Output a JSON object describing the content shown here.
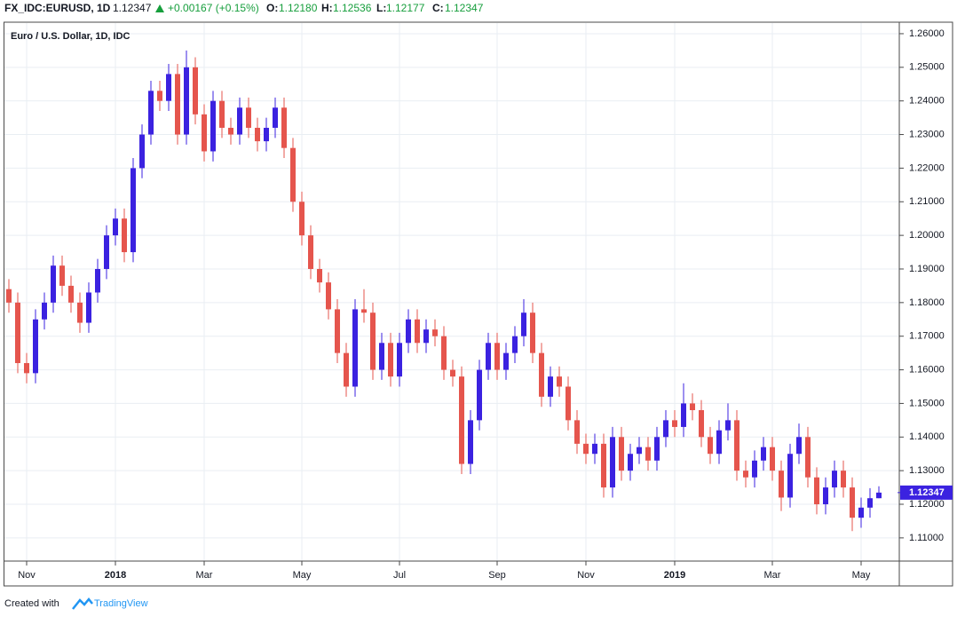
{
  "header": {
    "symbol": "FX_IDC:EURUSD, 1D",
    "last": "1.12347",
    "change": "+0.00167 (+0.15%)",
    "ohlc_labels": [
      "O:",
      "H:",
      "L:",
      "C:"
    ],
    "ohlc_values": [
      "1.12180",
      "1.12536",
      "1.12177",
      "1.12347"
    ]
  },
  "chart_data": {
    "type": "candlestick",
    "title": "Euro / U.S. Dollar, 1D, IDC",
    "up_color": "#3b22e0",
    "down_color": "#e5554d",
    "grid": true,
    "last_price_label": "1.12347",
    "categories": [
      null,
      null,
      "Nov",
      null,
      null,
      null,
      null,
      null,
      null,
      null,
      null,
      null,
      "2018",
      null,
      null,
      null,
      null,
      null,
      null,
      null,
      null,
      null,
      "Mar",
      null,
      null,
      null,
      null,
      null,
      null,
      null,
      null,
      null,
      null,
      "May",
      null,
      null,
      null,
      null,
      null,
      null,
      null,
      null,
      null,
      null,
      "Jul",
      null,
      null,
      null,
      null,
      null,
      null,
      null,
      null,
      null,
      null,
      "Sep",
      null,
      null,
      null,
      null,
      null,
      null,
      null,
      null,
      null,
      "Nov",
      null,
      null,
      null,
      null,
      null,
      null,
      null,
      null,
      null,
      "2019",
      null,
      null,
      null,
      null,
      null,
      null,
      null,
      null,
      null,
      null,
      "Mar",
      null,
      null,
      null,
      null,
      null,
      null,
      null,
      null,
      null,
      "May",
      null,
      null
    ],
    "open": [
      1.184,
      1.18,
      1.162,
      1.159,
      1.175,
      1.18,
      1.191,
      1.185,
      1.18,
      1.174,
      1.183,
      1.19,
      1.2,
      1.205,
      1.195,
      1.22,
      1.23,
      1.243,
      1.24,
      1.248,
      1.23,
      1.25,
      1.236,
      1.225,
      1.24,
      1.232,
      1.23,
      1.238,
      1.232,
      1.228,
      1.232,
      1.238,
      1.226,
      1.21,
      1.2,
      1.19,
      1.186,
      1.178,
      1.165,
      1.155,
      1.178,
      1.177,
      1.16,
      1.168,
      1.158,
      1.168,
      1.175,
      1.168,
      1.172,
      1.17,
      1.16,
      1.158,
      1.132,
      1.145,
      1.16,
      1.168,
      1.16,
      1.165,
      1.17,
      1.177,
      1.165,
      1.152,
      1.158,
      1.155,
      1.145,
      1.138,
      1.135,
      1.138,
      1.125,
      1.14,
      1.13,
      1.135,
      1.137,
      1.133,
      1.14,
      1.145,
      1.143,
      1.15,
      1.148,
      1.14,
      1.135,
      1.142,
      1.145,
      1.13,
      1.128,
      1.133,
      1.137,
      1.13,
      1.122,
      1.135,
      1.14,
      1.128,
      1.12,
      1.125,
      1.13,
      1.125,
      1.116,
      1.119,
      1.1218
    ],
    "high": [
      1.187,
      1.183,
      1.165,
      1.178,
      1.183,
      1.194,
      1.194,
      1.188,
      1.183,
      1.186,
      1.193,
      1.203,
      1.208,
      1.208,
      1.223,
      1.233,
      1.246,
      1.246,
      1.251,
      1.251,
      1.255,
      1.253,
      1.239,
      1.243,
      1.243,
      1.235,
      1.241,
      1.241,
      1.235,
      1.235,
      1.241,
      1.241,
      1.229,
      1.213,
      1.203,
      1.193,
      1.189,
      1.181,
      1.168,
      1.181,
      1.184,
      1.18,
      1.171,
      1.171,
      1.171,
      1.178,
      1.178,
      1.175,
      1.175,
      1.173,
      1.163,
      1.161,
      1.148,
      1.163,
      1.171,
      1.171,
      1.168,
      1.173,
      1.181,
      1.18,
      1.168,
      1.161,
      1.161,
      1.158,
      1.148,
      1.141,
      1.141,
      1.141,
      1.143,
      1.143,
      1.138,
      1.14,
      1.14,
      1.143,
      1.148,
      1.148,
      1.156,
      1.153,
      1.151,
      1.143,
      1.145,
      1.15,
      1.148,
      1.133,
      1.136,
      1.14,
      1.14,
      1.133,
      1.138,
      1.144,
      1.143,
      1.131,
      1.128,
      1.133,
      1.133,
      1.128,
      1.122,
      1.1248,
      1.12536
    ],
    "low": [
      1.177,
      1.159,
      1.156,
      1.156,
      1.172,
      1.177,
      1.182,
      1.177,
      1.171,
      1.171,
      1.18,
      1.187,
      1.197,
      1.192,
      1.192,
      1.217,
      1.227,
      1.237,
      1.237,
      1.227,
      1.227,
      1.233,
      1.222,
      1.222,
      1.229,
      1.227,
      1.227,
      1.229,
      1.225,
      1.225,
      1.229,
      1.223,
      1.207,
      1.197,
      1.187,
      1.183,
      1.175,
      1.162,
      1.152,
      1.152,
      1.174,
      1.157,
      1.157,
      1.155,
      1.155,
      1.165,
      1.165,
      1.165,
      1.167,
      1.157,
      1.155,
      1.129,
      1.129,
      1.142,
      1.157,
      1.157,
      1.157,
      1.162,
      1.167,
      1.162,
      1.149,
      1.149,
      1.152,
      1.142,
      1.135,
      1.132,
      1.132,
      1.122,
      1.122,
      1.127,
      1.127,
      1.132,
      1.13,
      1.13,
      1.137,
      1.14,
      1.14,
      1.145,
      1.137,
      1.132,
      1.132,
      1.139,
      1.127,
      1.125,
      1.125,
      1.13,
      1.127,
      1.118,
      1.119,
      1.132,
      1.125,
      1.117,
      1.117,
      1.122,
      1.122,
      1.112,
      1.113,
      1.116,
      1.12177
    ],
    "close": [
      1.18,
      1.162,
      1.159,
      1.175,
      1.18,
      1.191,
      1.185,
      1.18,
      1.174,
      1.183,
      1.19,
      1.2,
      1.205,
      1.195,
      1.22,
      1.23,
      1.243,
      1.24,
      1.248,
      1.23,
      1.25,
      1.236,
      1.225,
      1.24,
      1.232,
      1.23,
      1.238,
      1.232,
      1.228,
      1.232,
      1.238,
      1.226,
      1.21,
      1.2,
      1.19,
      1.186,
      1.178,
      1.165,
      1.155,
      1.178,
      1.177,
      1.16,
      1.168,
      1.158,
      1.168,
      1.175,
      1.168,
      1.172,
      1.17,
      1.16,
      1.158,
      1.132,
      1.145,
      1.16,
      1.168,
      1.16,
      1.165,
      1.17,
      1.177,
      1.165,
      1.152,
      1.158,
      1.155,
      1.145,
      1.138,
      1.135,
      1.138,
      1.125,
      1.14,
      1.13,
      1.135,
      1.137,
      1.133,
      1.14,
      1.145,
      1.143,
      1.15,
      1.148,
      1.14,
      1.135,
      1.142,
      1.145,
      1.13,
      1.128,
      1.133,
      1.137,
      1.13,
      1.122,
      1.135,
      1.14,
      1.128,
      1.12,
      1.125,
      1.13,
      1.125,
      1.116,
      1.119,
      1.1218,
      1.12347
    ],
    "ylim": [
      1.1031,
      1.2621
    ],
    "yticks": [
      {
        "value": 1.11,
        "label": "1.11000"
      },
      {
        "value": 1.12,
        "label": "1.12000"
      },
      {
        "value": 1.13,
        "label": "1.13000"
      },
      {
        "value": 1.14,
        "label": "1.14000"
      },
      {
        "value": 1.15,
        "label": "1.15000"
      },
      {
        "value": 1.16,
        "label": "1.16000"
      },
      {
        "value": 1.17,
        "label": "1.17000"
      },
      {
        "value": 1.18,
        "label": "1.18000"
      },
      {
        "value": 1.19,
        "label": "1.19000"
      },
      {
        "value": 1.2,
        "label": "1.20000"
      },
      {
        "value": 1.21,
        "label": "1.21000"
      },
      {
        "value": 1.22,
        "label": "1.22000"
      },
      {
        "value": 1.23,
        "label": "1.23000"
      },
      {
        "value": 1.24,
        "label": "1.24000"
      },
      {
        "value": 1.25,
        "label": "1.25000"
      },
      {
        "value": 1.26,
        "label": "1.26000"
      }
    ]
  },
  "footer": {
    "prefix": "Created with",
    "brand": "TradingView"
  }
}
